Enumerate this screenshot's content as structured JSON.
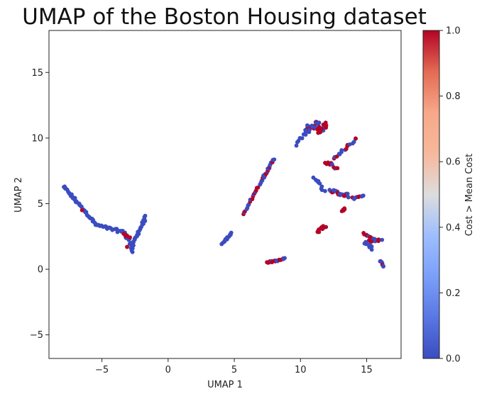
{
  "chart_data": {
    "type": "scatter",
    "title": "UMAP of the Boston Housing dataset",
    "xlabel": "UMAP 1",
    "ylabel": "UMAP 2",
    "xlim": [
      -9.0,
      17.6
    ],
    "ylim": [
      -6.8,
      18.2
    ],
    "xticks": [
      -5,
      0,
      5,
      10,
      15
    ],
    "yticks": [
      -5,
      0,
      5,
      10,
      15
    ],
    "grid": false,
    "colormap": "coolwarm",
    "colorbar": {
      "label": "Cost > Mean Cost",
      "range": [
        0.0,
        1.0
      ],
      "ticks": [
        "0.0",
        "0.2",
        "0.4",
        "0.6",
        "0.8",
        "1.0"
      ],
      "low_color": "#3b4cc0",
      "mid_color": "#dddddd",
      "high_color": "#b40426"
    },
    "clusters": [
      {
        "x1": -7.9,
        "y1": 6.3,
        "x2": -5.5,
        "y2": 3.5,
        "n": 40,
        "value": 0,
        "spread": 0.08
      },
      {
        "x1": -5.5,
        "y1": 3.4,
        "x2": -3.3,
        "y2": 2.8,
        "n": 28,
        "value": 0,
        "spread": 0.1
      },
      {
        "x1": -3.3,
        "y1": 2.8,
        "x2": -2.6,
        "y2": 1.4,
        "n": 14,
        "value": 0,
        "spread": 0.12
      },
      {
        "x1": -2.8,
        "y1": 1.6,
        "x2": -1.7,
        "y2": 4.0,
        "n": 30,
        "value": 0,
        "spread": 0.08
      },
      {
        "x1": -3.4,
        "y1": 2.6,
        "x2": -2.9,
        "y2": 2.4,
        "n": 5,
        "value": 1,
        "spread": 0.1
      },
      {
        "x1": -6.5,
        "y1": 4.5,
        "x2": -6.5,
        "y2": 4.5,
        "n": 1,
        "value": 1,
        "spread": 0
      },
      {
        "x1": -3.1,
        "y1": 1.7,
        "x2": -3.1,
        "y2": 1.7,
        "n": 1,
        "value": 1,
        "spread": 0
      },
      {
        "x1": 4.1,
        "y1": 1.9,
        "x2": 4.8,
        "y2": 2.8,
        "n": 14,
        "value": 0,
        "spread": 0.06
      },
      {
        "x1": 5.7,
        "y1": 4.2,
        "x2": 7.3,
        "y2": 7.2,
        "n": 24,
        "value": 0.55,
        "spread": 0.06
      },
      {
        "x1": 7.2,
        "y1": 7.0,
        "x2": 8.0,
        "y2": 8.4,
        "n": 16,
        "value": 0.25,
        "spread": 0.06
      },
      {
        "x1": 7.5,
        "y1": 0.5,
        "x2": 8.8,
        "y2": 0.8,
        "n": 18,
        "value": 0.5,
        "spread": 0.06
      },
      {
        "x1": 9.6,
        "y1": 9.5,
        "x2": 10.6,
        "y2": 10.5,
        "n": 8,
        "value": 0,
        "spread": 0.1
      },
      {
        "x1": 10.4,
        "y1": 10.6,
        "x2": 11.4,
        "y2": 11.2,
        "n": 24,
        "value": 0.2,
        "spread": 0.2
      },
      {
        "x1": 11.2,
        "y1": 10.5,
        "x2": 12.0,
        "y2": 11.0,
        "n": 16,
        "value": 0.85,
        "spread": 0.2
      },
      {
        "x1": 11.9,
        "y1": 8.2,
        "x2": 12.8,
        "y2": 7.6,
        "n": 10,
        "value": 0.9,
        "spread": 0.12
      },
      {
        "x1": 12.5,
        "y1": 8.4,
        "x2": 14.2,
        "y2": 10.0,
        "n": 16,
        "value": 0.45,
        "spread": 0.1
      },
      {
        "x1": 11.0,
        "y1": 7.0,
        "x2": 11.8,
        "y2": 6.0,
        "n": 10,
        "value": 0,
        "spread": 0.1
      },
      {
        "x1": 12.2,
        "y1": 6.0,
        "x2": 13.6,
        "y2": 5.6,
        "n": 22,
        "value": 0.4,
        "spread": 0.15
      },
      {
        "x1": 14.0,
        "y1": 5.4,
        "x2": 14.8,
        "y2": 5.6,
        "n": 10,
        "value": 0.6,
        "spread": 0.08
      },
      {
        "x1": 13.1,
        "y1": 4.4,
        "x2": 13.4,
        "y2": 4.7,
        "n": 5,
        "value": 1,
        "spread": 0.08
      },
      {
        "x1": 11.3,
        "y1": 2.9,
        "x2": 11.9,
        "y2": 3.3,
        "n": 12,
        "value": 1,
        "spread": 0.1
      },
      {
        "x1": 14.8,
        "y1": 2.7,
        "x2": 15.4,
        "y2": 2.4,
        "n": 10,
        "value": 0.9,
        "spread": 0.08
      },
      {
        "x1": 15.2,
        "y1": 2.2,
        "x2": 16.1,
        "y2": 2.2,
        "n": 12,
        "value": 0.55,
        "spread": 0.12
      },
      {
        "x1": 14.9,
        "y1": 2.1,
        "x2": 15.5,
        "y2": 1.6,
        "n": 12,
        "value": 0,
        "spread": 0.12
      },
      {
        "x1": 16.0,
        "y1": 0.6,
        "x2": 16.3,
        "y2": 0.2,
        "n": 8,
        "value": 0.5,
        "spread": 0.06
      }
    ]
  }
}
